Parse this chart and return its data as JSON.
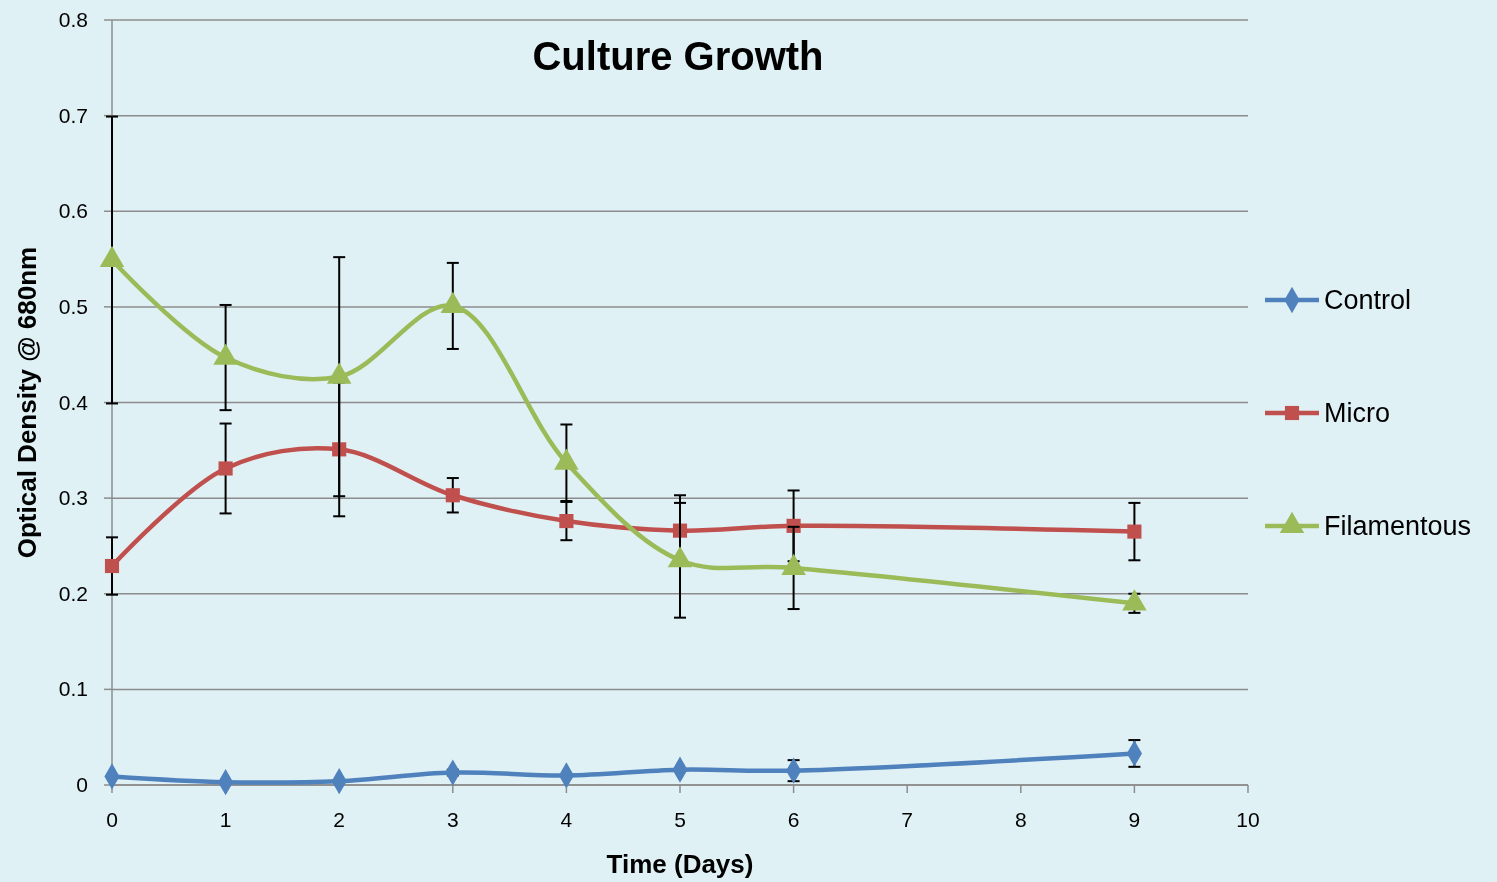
{
  "chart_data": {
    "type": "line",
    "title": "Culture Growth",
    "xlabel": "Time (Days)",
    "ylabel": "Optical Density @ 680nm",
    "x": [
      0,
      1,
      2,
      3,
      4,
      5,
      6,
      9
    ],
    "xlim": [
      0,
      10
    ],
    "xticks": [
      0,
      1,
      2,
      3,
      4,
      5,
      6,
      7,
      8,
      9,
      10
    ],
    "ylim": [
      0,
      0.8
    ],
    "yticks": [
      0,
      0.1,
      0.2,
      0.3,
      0.4,
      0.5,
      0.6,
      0.7,
      0.8
    ],
    "grid": "y",
    "legend": "right",
    "line_style": "solid",
    "series": [
      {
        "name": "Control",
        "color": "#4f81bd",
        "marker": "diamond",
        "values": [
          0.009,
          0.003,
          0.004,
          0.013,
          0.01,
          0.016,
          0.015,
          0.033
        ],
        "errors": [
          null,
          null,
          null,
          0.003,
          null,
          null,
          0.011,
          0.014
        ]
      },
      {
        "name": "Micro",
        "color": "#c0504d",
        "marker": "square",
        "values": [
          0.229,
          0.331,
          0.351,
          0.303,
          0.276,
          0.266,
          0.271,
          0.265
        ],
        "errors": [
          0.03,
          0.047,
          0.07,
          0.018,
          0.02,
          0.037,
          0.037,
          0.03
        ]
      },
      {
        "name": "Filamentous",
        "color": "#9bbb59",
        "marker": "triangle",
        "values": [
          0.549,
          0.447,
          0.427,
          0.501,
          0.337,
          0.235,
          0.227,
          0.19
        ],
        "errors": [
          0.15,
          0.055,
          0.125,
          0.045,
          0.04,
          0.06,
          0.043,
          0.01
        ]
      }
    ]
  }
}
